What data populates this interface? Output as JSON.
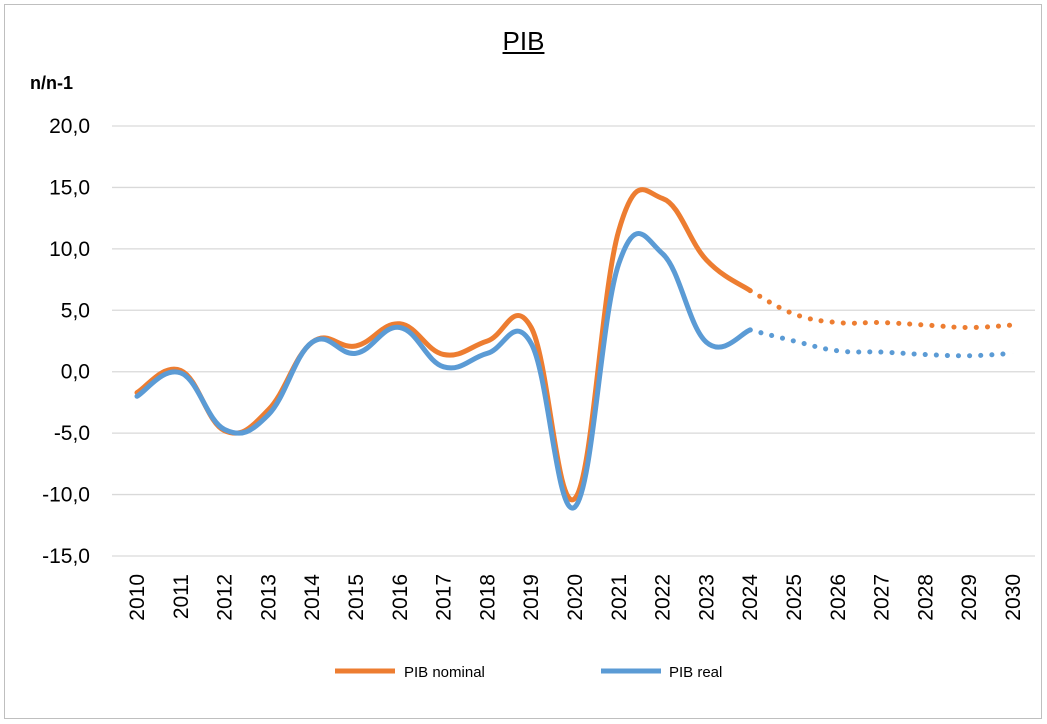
{
  "chart_data": {
    "type": "line",
    "title": "PIB",
    "ylabel": "n/n-1",
    "xlabel": "",
    "ylim": [
      -15,
      20
    ],
    "yticks": [
      20,
      15,
      10,
      5,
      0,
      -5,
      -10,
      -15
    ],
    "ytick_labels": [
      "20,0",
      "15,0",
      "10,0",
      "5,0",
      "0,0",
      "-5,0",
      "-10,0",
      "-15,0"
    ],
    "grid": true,
    "legend_position": "bottom",
    "categories": [
      "2010",
      "2011",
      "2012",
      "2013",
      "2014",
      "2015",
      "2016",
      "2017",
      "2018",
      "2019",
      "2020",
      "2021",
      "2022",
      "2023",
      "2024",
      "2025",
      "2026",
      "2027",
      "2028",
      "2029",
      "2030"
    ],
    "series": [
      {
        "name": "PIB nominal",
        "color": "#ed7d31",
        "values": [
          -1.7,
          0.1,
          -4.8,
          -3.1,
          2.4,
          2.1,
          3.9,
          1.4,
          2.5,
          3.6,
          -10.3,
          11.5,
          14.1,
          9.1,
          6.6,
          4.7,
          4.0,
          4.0,
          3.8,
          3.6,
          3.8
        ],
        "projection_from_index": 14
      },
      {
        "name": "PIB real",
        "color": "#5b9bd5",
        "values": [
          -2.0,
          -0.1,
          -4.7,
          -3.5,
          2.4,
          1.5,
          3.6,
          0.4,
          1.5,
          2.3,
          -11.0,
          8.8,
          9.6,
          2.4,
          3.4,
          2.5,
          1.7,
          1.6,
          1.4,
          1.3,
          1.5
        ],
        "projection_from_index": 14
      }
    ]
  }
}
